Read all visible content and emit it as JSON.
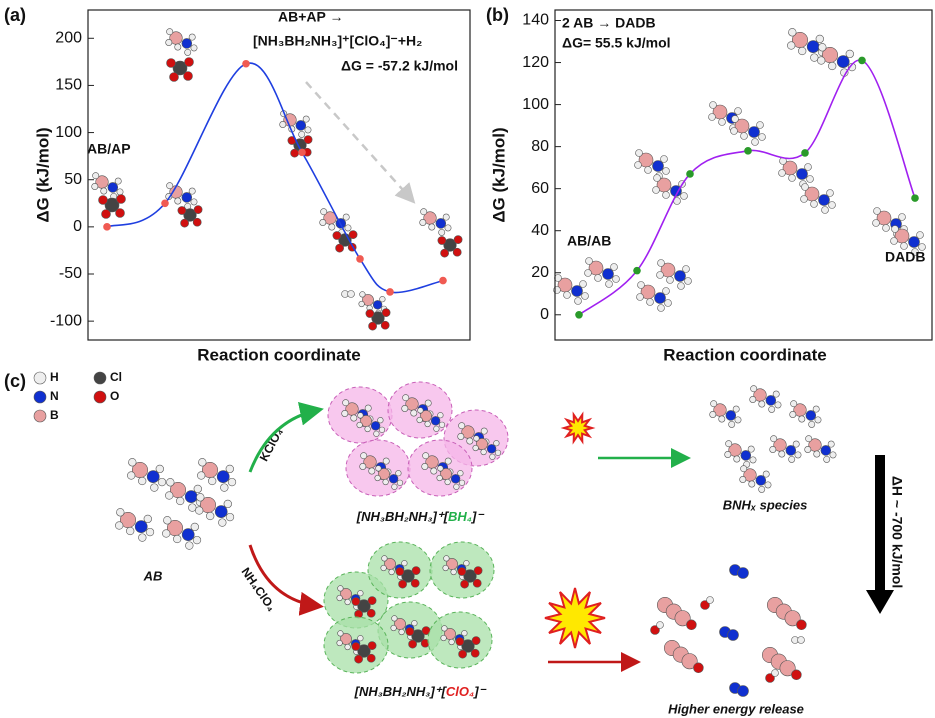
{
  "chart_data": [
    {
      "type": "line",
      "panel_label": "(a)",
      "y_label": "ΔG (kJ/mol)",
      "x_label": "Reaction coordinate",
      "categories": [
        null,
        null,
        null,
        null,
        null,
        null,
        null
      ],
      "series": [
        {
          "color": "#1f3fe0",
          "marker_color": "#f05a52",
          "values": [
            0,
            25,
            173,
            79,
            -34,
            -69,
            -57
          ]
        }
      ],
      "ylim": [
        -120,
        230
      ],
      "yticks": [
        -100,
        -50,
        0,
        50,
        100,
        150,
        200
      ],
      "annotations": [
        "AB/AP",
        "AB+AP →",
        "[NH₃BH₂NH₃]⁺[ClO₄]⁻+H₂",
        "ΔG = -57.2 kJ/mol"
      ]
    },
    {
      "type": "line",
      "panel_label": "(b)",
      "y_label": "ΔG (kJ/mol)",
      "x_label": "Reaction coordinate",
      "categories": [
        null,
        null,
        null,
        null,
        null,
        null,
        null
      ],
      "series": [
        {
          "color": "#a020f0",
          "marker_color": "#2a9a2a",
          "values": [
            0,
            21,
            67,
            78,
            77,
            121,
            55.5
          ]
        }
      ],
      "ylim": [
        -12,
        145
      ],
      "yticks": [
        0,
        20,
        40,
        60,
        80,
        100,
        120,
        140
      ],
      "annotations": [
        "2 AB → DADB",
        "ΔG= 55.5 kJ/mol",
        "AB/AB",
        "DADB"
      ]
    }
  ],
  "diagram": {
    "panel_label": "(c)",
    "legend": [
      {
        "label": "H",
        "color": "#eeeeee"
      },
      {
        "label": "Cl",
        "color": "#444444"
      },
      {
        "label": "N",
        "color": "#1030d0"
      },
      {
        "label": "O",
        "color": "#d01010"
      },
      {
        "label": "B",
        "color": "#e8a0a0"
      }
    ],
    "reactant": "AB",
    "reagents": [
      "KClO₄",
      "NH₄ClO₄"
    ],
    "intermediates": [
      {
        "parts": [
          "[NH₃BH₂NH₃]⁺[",
          "BH₄",
          "]⁻"
        ],
        "color": "#22b04a"
      },
      {
        "parts": [
          "[NH₃BH₂NH₃]⁺[",
          "ClO₄",
          "]⁻"
        ],
        "color": "#e02020"
      }
    ],
    "outcomes": [
      {
        "label": "BNHₓ species",
        "color": "#22b04a"
      },
      {
        "label": "Higher energy release",
        "color": "#e02020"
      }
    ],
    "enthalpy": "ΔH ~ -700 kJ/mol"
  }
}
